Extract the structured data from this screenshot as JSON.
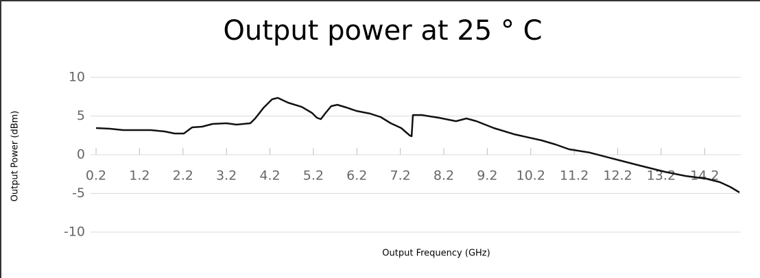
{
  "chart_data": {
    "type": "line",
    "title": "Output power at 25 ° C",
    "x_label": "Output Frequency (GHz)",
    "y_label": "Output Power (dBm)",
    "x": [
      0.2,
      0.52,
      0.83,
      1.46,
      1.78,
      2.01,
      2.22,
      2.41,
      2.64,
      2.88,
      3.2,
      3.43,
      3.75,
      3.86,
      4.06,
      4.25,
      4.38,
      4.62,
      4.93,
      5.17,
      5.28,
      5.37,
      5.48,
      5.61,
      5.75,
      5.96,
      6.19,
      6.51,
      6.75,
      6.98,
      7.22,
      7.42,
      7.46,
      7.49,
      7.69,
      8.09,
      8.48,
      8.72,
      8.95,
      9.35,
      9.82,
      10.45,
      10.77,
      11.08,
      11.56,
      12.11,
      12.66,
      13.29,
      13.76,
      14.24,
      14.55,
      14.79,
      15.0
    ],
    "values": [
      3.45,
      3.36,
      3.19,
      3.19,
      3.01,
      2.74,
      2.74,
      3.54,
      3.63,
      3.98,
      4.07,
      3.89,
      4.07,
      4.69,
      6.11,
      7.17,
      7.35,
      6.73,
      6.19,
      5.4,
      4.78,
      4.6,
      5.4,
      6.28,
      6.46,
      6.11,
      5.66,
      5.31,
      4.87,
      4.07,
      3.45,
      2.48,
      2.39,
      5.13,
      5.13,
      4.78,
      4.34,
      4.69,
      4.34,
      3.45,
      2.65,
      1.86,
      1.33,
      0.71,
      0.27,
      -0.53,
      -1.33,
      -2.21,
      -2.74,
      -3.1,
      -3.54,
      -4.16,
      -4.87
    ],
    "color": "#111111",
    "xlim": [
      0.2,
      15.0
    ],
    "xticks": [
      0.2,
      1.2,
      2.2,
      3.2,
      4.2,
      5.2,
      6.2,
      7.2,
      8.2,
      9.2,
      10.2,
      11.2,
      12.2,
      13.2,
      14.2
    ],
    "ylim": [
      -10,
      10
    ],
    "yticks": [
      -10,
      -5,
      0,
      5,
      10
    ],
    "grid": true
  }
}
